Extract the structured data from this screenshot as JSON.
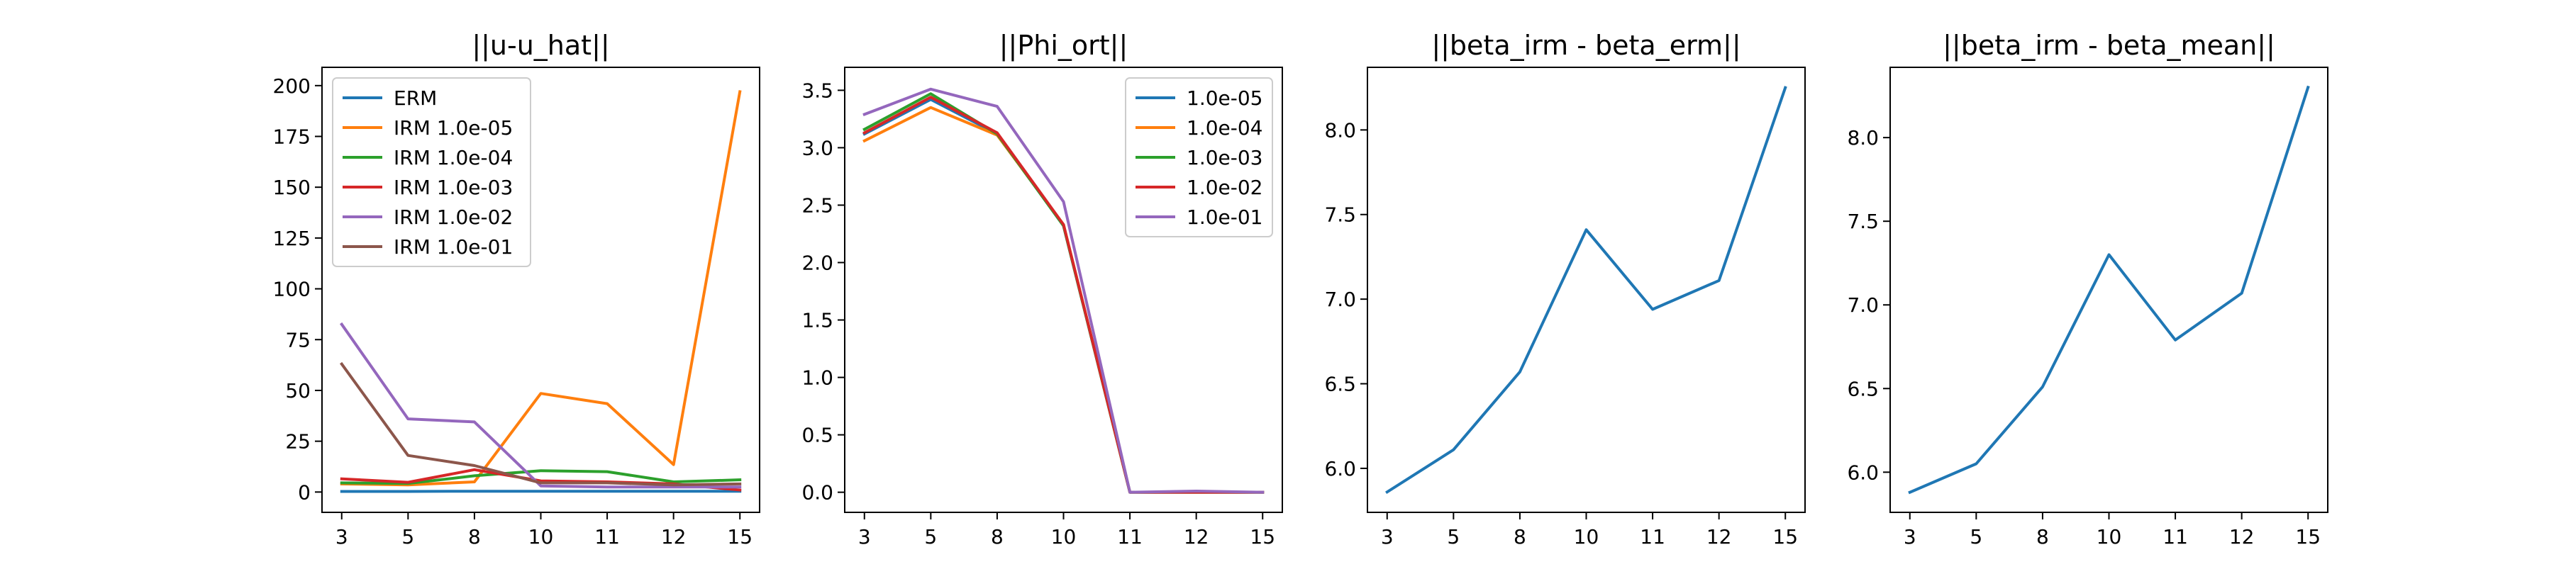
{
  "chart_data": [
    {
      "type": "line",
      "title": "||u-u_hat||",
      "xlabel": "",
      "ylabel": "",
      "categories": [
        "3",
        "5",
        "8",
        "10",
        "11",
        "12",
        "15"
      ],
      "ylim": [
        -10,
        209
      ],
      "yticks": [
        0,
        25,
        50,
        75,
        100,
        125,
        150,
        175,
        200
      ],
      "legend": "upper-left",
      "series": [
        {
          "name": "ERM",
          "color": "#1f77b4",
          "values": [
            0.3,
            0.3,
            0.4,
            0.4,
            0.4,
            0.4,
            0.4
          ]
        },
        {
          "name": "IRM 1.0e-05",
          "color": "#ff7f0e",
          "values": [
            4,
            3.5,
            5,
            48.5,
            43.5,
            13.5,
            197
          ]
        },
        {
          "name": "IRM 1.0e-04",
          "color": "#2ca02c",
          "values": [
            4.5,
            4.2,
            8,
            10.5,
            10,
            5,
            6
          ]
        },
        {
          "name": "IRM 1.0e-03",
          "color": "#d62728",
          "values": [
            6.5,
            4.8,
            11,
            5.5,
            5,
            4,
            1
          ]
        },
        {
          "name": "IRM 1.0e-02",
          "color": "#9467bd",
          "values": [
            82.5,
            36,
            34.5,
            3,
            2.5,
            2.5,
            2.5
          ]
        },
        {
          "name": "IRM 1.0e-01",
          "color": "#8c564b",
          "values": [
            63,
            18,
            13,
            4.5,
            4.5,
            3.5,
            4
          ]
        }
      ]
    },
    {
      "type": "line",
      "title": "||Phi_ort||",
      "xlabel": "",
      "ylabel": "",
      "categories": [
        "3",
        "5",
        "8",
        "10",
        "11",
        "12",
        "15"
      ],
      "ylim": [
        -0.175,
        3.7
      ],
      "yticks": [
        0.0,
        0.5,
        1.0,
        1.5,
        2.0,
        2.5,
        3.0,
        3.5
      ],
      "ytick_labels": [
        "0.0",
        "0.5",
        "1.0",
        "1.5",
        "2.0",
        "2.5",
        "3.0",
        "3.5"
      ],
      "legend": "upper-right",
      "series": [
        {
          "name": "1.0e-05",
          "color": "#1f77b4",
          "values": [
            3.12,
            3.42,
            3.12,
            2.32,
            0.0,
            0.0,
            0.0
          ]
        },
        {
          "name": "1.0e-04",
          "color": "#ff7f0e",
          "values": [
            3.06,
            3.35,
            3.11,
            2.33,
            0.0,
            0.0,
            0.0
          ]
        },
        {
          "name": "1.0e-03",
          "color": "#2ca02c",
          "values": [
            3.16,
            3.47,
            3.12,
            2.32,
            0.0,
            0.0,
            0.0
          ]
        },
        {
          "name": "1.0e-02",
          "color": "#d62728",
          "values": [
            3.13,
            3.44,
            3.13,
            2.33,
            0.0,
            0.0,
            0.0
          ]
        },
        {
          "name": "1.0e-01",
          "color": "#9467bd",
          "values": [
            3.29,
            3.51,
            3.36,
            2.53,
            0.0,
            0.01,
            0.0
          ]
        }
      ]
    },
    {
      "type": "line",
      "title": "||beta_irm - beta_erm||",
      "xlabel": "",
      "ylabel": "",
      "categories": [
        "3",
        "5",
        "8",
        "10",
        "11",
        "12",
        "15"
      ],
      "ylim": [
        5.74,
        8.37
      ],
      "yticks": [
        6.0,
        6.5,
        7.0,
        7.5,
        8.0
      ],
      "ytick_labels": [
        "6.0",
        "6.5",
        "7.0",
        "7.5",
        "8.0"
      ],
      "series": [
        {
          "color": "#1f77b4",
          "values": [
            5.86,
            6.11,
            6.57,
            7.41,
            6.94,
            7.11,
            8.25
          ]
        }
      ]
    },
    {
      "type": "line",
      "title": "||beta_irm - beta_mean||",
      "xlabel": "",
      "ylabel": "",
      "categories": [
        "3",
        "5",
        "8",
        "10",
        "11",
        "12",
        "15"
      ],
      "ylim": [
        5.76,
        8.42
      ],
      "yticks": [
        6.0,
        6.5,
        7.0,
        7.5,
        8.0
      ],
      "ytick_labels": [
        "6.0",
        "6.5",
        "7.0",
        "7.5",
        "8.0"
      ],
      "series": [
        {
          "color": "#1f77b4",
          "values": [
            5.88,
            6.05,
            6.51,
            7.3,
            6.79,
            7.07,
            8.3
          ]
        }
      ]
    }
  ]
}
